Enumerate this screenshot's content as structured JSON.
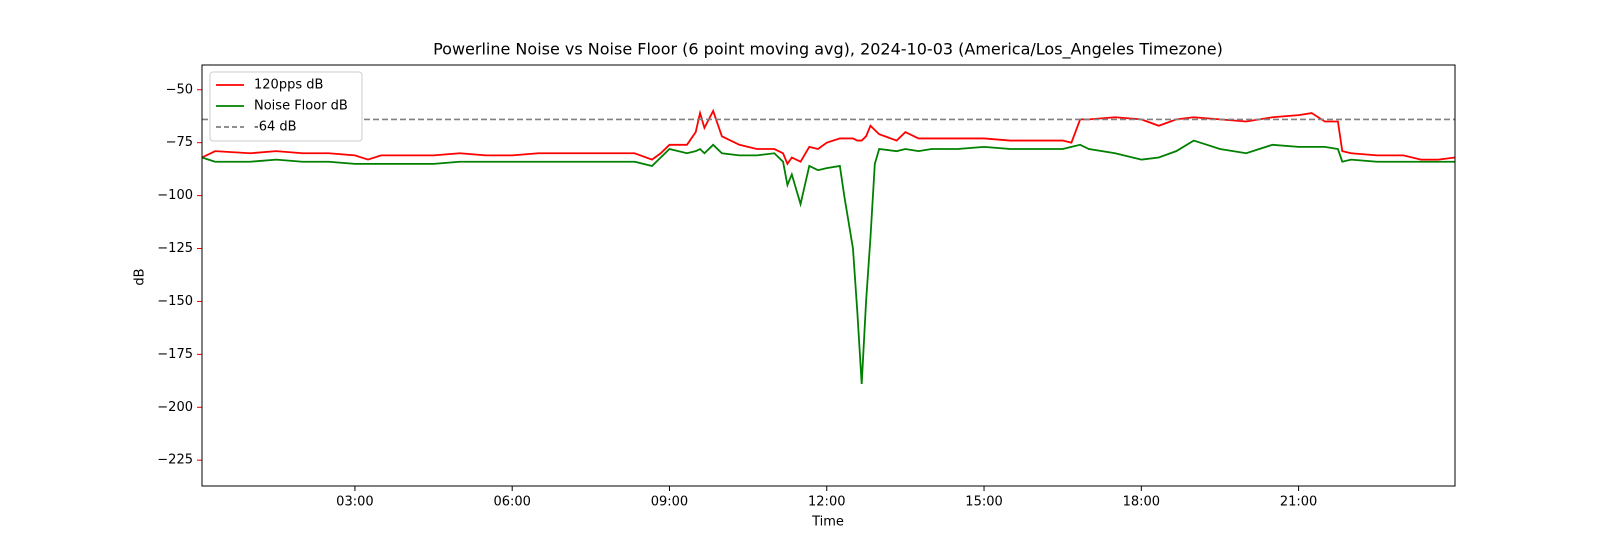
{
  "chart_data": {
    "type": "line",
    "title": "Powerline Noise vs Noise Floor (6 point moving avg), 2024-10-03 (America/Los_Angeles Timezone)",
    "x_label": "Time",
    "y_label": "dB",
    "y_label_color": "#e00000",
    "x": [
      "00:05",
      "00:20",
      "01:00",
      "01:30",
      "02:00",
      "02:30",
      "03:00",
      "03:15",
      "03:30",
      "04:00",
      "04:30",
      "05:00",
      "05:30",
      "06:00",
      "06:30",
      "07:00",
      "07:30",
      "08:00",
      "08:20",
      "08:40",
      "08:50",
      "09:00",
      "09:20",
      "09:30",
      "09:35",
      "09:40",
      "09:50",
      "10:00",
      "10:20",
      "10:40",
      "11:00",
      "11:10",
      "11:15",
      "11:20",
      "11:30",
      "11:40",
      "11:50",
      "12:00",
      "12:15",
      "12:20",
      "12:30",
      "12:35",
      "12:40",
      "12:45",
      "12:50",
      "12:55",
      "13:00",
      "13:20",
      "13:30",
      "13:45",
      "14:00",
      "14:30",
      "15:00",
      "15:30",
      "16:00",
      "16:30",
      "16:40",
      "16:50",
      "17:00",
      "17:30",
      "18:00",
      "18:20",
      "18:40",
      "19:00",
      "19:30",
      "20:00",
      "20:30",
      "21:00",
      "21:15",
      "21:30",
      "21:45",
      "21:50",
      "22:00",
      "22:30",
      "23:00",
      "23:20",
      "23:40",
      "23:59"
    ],
    "series": [
      {
        "name": "120pps dB",
        "color": "#ff0000",
        "values": [
          -82,
          -79,
          -80,
          -79,
          -80,
          -80,
          -81,
          -83,
          -81,
          -81,
          -81,
          -80,
          -81,
          -81,
          -80,
          -80,
          -80,
          -80,
          -80,
          -83,
          -80,
          -76,
          -76,
          -70,
          -61,
          -68,
          -60,
          -72,
          -76,
          -78,
          -78,
          -80,
          -85,
          -82,
          -84,
          -77,
          -78,
          -75,
          -73,
          -73,
          -73,
          -74,
          -74,
          -72,
          -67,
          -69,
          -71,
          -74,
          -70,
          -73,
          -73,
          -73,
          -73,
          -74,
          -74,
          -74,
          -75,
          -64,
          -64,
          -63,
          -64,
          -67,
          -64,
          -63,
          -64,
          -65,
          -63,
          -62,
          -61,
          -65,
          -65,
          -79,
          -80,
          -81,
          -81,
          -83,
          -83,
          -82
        ]
      },
      {
        "name": "Noise Floor dB",
        "color": "#008000",
        "values": [
          -82,
          -84,
          -84,
          -83,
          -84,
          -84,
          -85,
          -85,
          -85,
          -85,
          -85,
          -84,
          -84,
          -84,
          -84,
          -84,
          -84,
          -84,
          -84,
          -86,
          -82,
          -78,
          -80,
          -79,
          -78,
          -80,
          -76,
          -80,
          -81,
          -81,
          -80,
          -84,
          -95,
          -90,
          -104,
          -86,
          -88,
          -87,
          -86,
          -100,
          -125,
          -155,
          -189,
          -150,
          -120,
          -85,
          -78,
          -79,
          -78,
          -79,
          -78,
          -78,
          -77,
          -78,
          -78,
          -78,
          -77,
          -76,
          -78,
          -80,
          -83,
          -82,
          -79,
          -74,
          -78,
          -80,
          -76,
          -77,
          -77,
          -77,
          -78,
          -84,
          -83,
          -84,
          -84,
          -84,
          -84,
          -84
        ]
      }
    ],
    "hline": {
      "name": "-64 dB",
      "value": -64,
      "color": "#808080"
    },
    "xlim": [
      "00:05",
      "23:59"
    ],
    "xticks": [
      "03:00",
      "06:00",
      "09:00",
      "12:00",
      "15:00",
      "18:00",
      "21:00"
    ],
    "ylim": [
      -237.2,
      -38.3
    ],
    "yticks": [
      {
        "value": -50,
        "label": "−50"
      },
      {
        "value": -75,
        "label": "−75"
      },
      {
        "value": -100,
        "label": "−100"
      },
      {
        "value": -125,
        "label": "−125"
      },
      {
        "value": -150,
        "label": "−150"
      },
      {
        "value": -175,
        "label": "−175"
      },
      {
        "value": -200,
        "label": "−200"
      },
      {
        "value": -225,
        "label": "−225"
      }
    ],
    "legend": "upper left"
  }
}
